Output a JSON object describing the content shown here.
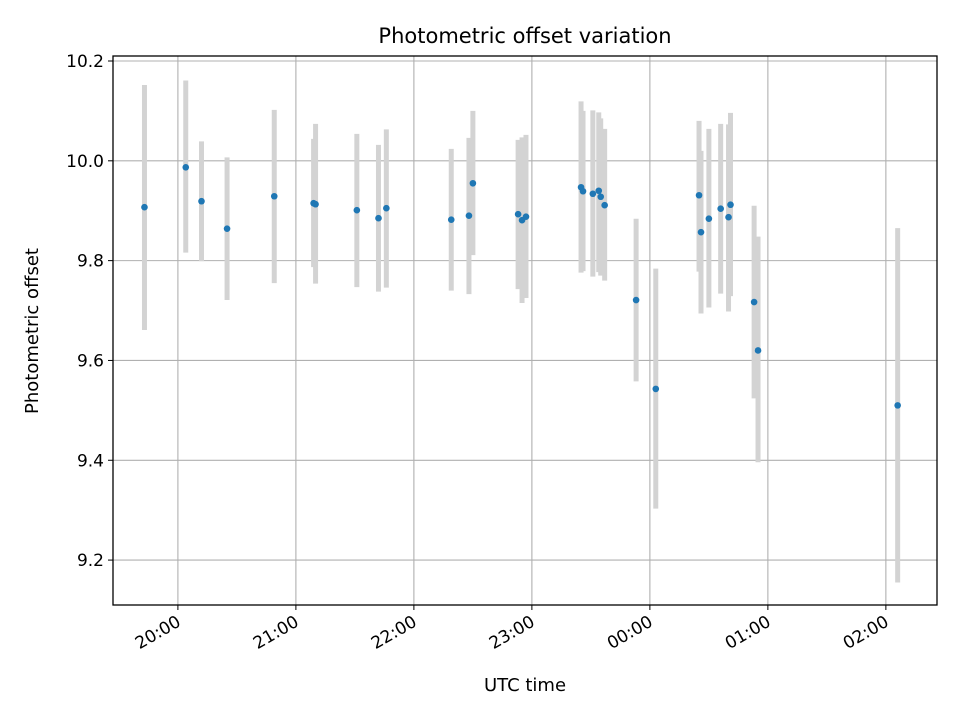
{
  "chart_data": {
    "type": "scatter",
    "title": "Photometric offset variation",
    "xlabel": "UTC time",
    "ylabel": "Photometric offset",
    "ylim": [
      9.11,
      10.21
    ],
    "xlim": [
      "19:27",
      "02:26"
    ],
    "grid": true,
    "legend": "none",
    "y_ticks": [
      "9.2",
      "9.4",
      "9.6",
      "9.8",
      "10.0",
      "10.2"
    ],
    "x_ticks": [
      "20:00",
      "21:00",
      "22:00",
      "23:00",
      "00:00",
      "01:00",
      "02:00"
    ],
    "colors": {
      "point": "#1f77b4",
      "errorbar": "#d3d3d3",
      "grid": "#b0b0b0"
    },
    "points": [
      {
        "x": "19:43",
        "y": 9.907,
        "lo": 9.661,
        "hi": 10.152
      },
      {
        "x": "20:04",
        "y": 9.987,
        "lo": 9.816,
        "hi": 10.161
      },
      {
        "x": "20:12",
        "y": 9.919,
        "lo": 9.799,
        "hi": 10.039
      },
      {
        "x": "20:25",
        "y": 9.864,
        "lo": 9.721,
        "hi": 10.007
      },
      {
        "x": "20:49",
        "y": 9.929,
        "lo": 9.755,
        "hi": 10.102
      },
      {
        "x": "21:09",
        "y": 9.915,
        "lo": 9.787,
        "hi": 10.044
      },
      {
        "x": "21:10",
        "y": 9.913,
        "lo": 9.754,
        "hi": 10.074
      },
      {
        "x": "21:31",
        "y": 9.901,
        "lo": 9.747,
        "hi": 10.054
      },
      {
        "x": "21:42",
        "y": 9.885,
        "lo": 9.738,
        "hi": 10.032
      },
      {
        "x": "21:46",
        "y": 9.905,
        "lo": 9.746,
        "hi": 10.063
      },
      {
        "x": "22:19",
        "y": 9.882,
        "lo": 9.74,
        "hi": 10.024
      },
      {
        "x": "22:28",
        "y": 9.89,
        "lo": 9.733,
        "hi": 10.046
      },
      {
        "x": "22:30",
        "y": 9.955,
        "lo": 9.811,
        "hi": 10.1
      },
      {
        "x": "22:53",
        "y": 9.893,
        "lo": 9.743,
        "hi": 10.042
      },
      {
        "x": "22:55",
        "y": 9.881,
        "lo": 9.715,
        "hi": 10.047
      },
      {
        "x": "22:57",
        "y": 9.888,
        "lo": 9.725,
        "hi": 10.052
      },
      {
        "x": "23:25",
        "y": 9.947,
        "lo": 9.776,
        "hi": 10.119
      },
      {
        "x": "23:26",
        "y": 9.939,
        "lo": 9.779,
        "hi": 10.1
      },
      {
        "x": "23:31",
        "y": 9.934,
        "lo": 9.768,
        "hi": 10.101
      },
      {
        "x": "23:34",
        "y": 9.94,
        "lo": 9.777,
        "hi": 10.097
      },
      {
        "x": "23:35",
        "y": 9.928,
        "lo": 9.77,
        "hi": 10.085
      },
      {
        "x": "23:37",
        "y": 9.911,
        "lo": 9.76,
        "hi": 10.064
      },
      {
        "x": "23:53",
        "y": 9.721,
        "lo": 9.558,
        "hi": 9.884
      },
      {
        "x": "00:03",
        "y": 9.543,
        "lo": 9.303,
        "hi": 9.784
      },
      {
        "x": "00:25",
        "y": 9.931,
        "lo": 9.778,
        "hi": 10.08
      },
      {
        "x": "00:26",
        "y": 9.857,
        "lo": 9.694,
        "hi": 10.02
      },
      {
        "x": "00:30",
        "y": 9.884,
        "lo": 9.706,
        "hi": 10.064
      },
      {
        "x": "00:36",
        "y": 9.904,
        "lo": 9.734,
        "hi": 10.074
      },
      {
        "x": "00:40",
        "y": 9.887,
        "lo": 9.698,
        "hi": 10.073
      },
      {
        "x": "00:41",
        "y": 9.912,
        "lo": 9.729,
        "hi": 10.096
      },
      {
        "x": "00:53",
        "y": 9.717,
        "lo": 9.524,
        "hi": 9.91
      },
      {
        "x": "00:55",
        "y": 9.62,
        "lo": 9.396,
        "hi": 9.848
      },
      {
        "x": "02:06",
        "y": 9.51,
        "lo": 9.155,
        "hi": 9.865
      }
    ]
  }
}
